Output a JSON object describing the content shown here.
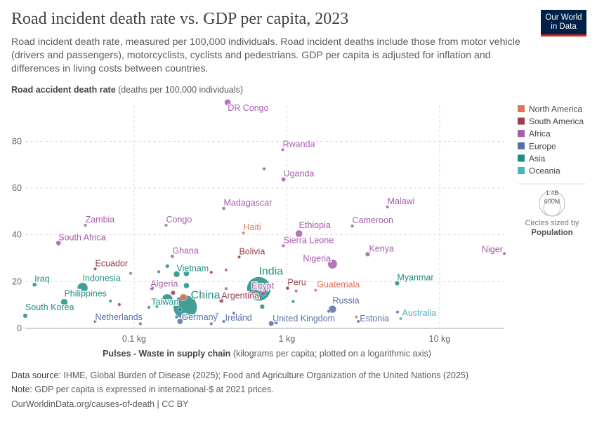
{
  "header": {
    "title": "Road incident death rate vs. GDP per capita, 2023",
    "subtitle": "Road incident death rate, measured per 100,000 individuals. Road incident deaths include those from motor vehicle (drivers and passengers), motorcyclists, cyclists and pedestrians. GDP per capita is adjusted for inflation and differences in living costs between countries.",
    "logo": "Our World in Data"
  },
  "footer": {
    "source_label": "Data source:",
    "source": "IHME, Global Burden of Disease (2025); Food and Agriculture Organization of the United Nations (2025)",
    "note_label": "Note:",
    "note": "GDP per capita is expressed in international-$ at 2021 prices.",
    "url": "OurWorldinData.org/causes-of-death | CC BY"
  },
  "chart_data": {
    "type": "scatter",
    "title": "Road incident death rate vs. GDP per capita, 2023",
    "ylabel_bold": "Road accident death rate",
    "ylabel_unit": "(deaths per 100,000 individuals)",
    "xlabel_bold": "Pulses - Waste in supply chain",
    "xlabel_unit": "(kilograms per capita; plotted on a logarithmic axis)",
    "x_scale": "log",
    "xlim": [
      0.0194,
      26.5
    ],
    "ylim": [
      0,
      96
    ],
    "x_ticks": [
      {
        "value": 0.1,
        "label": "0.1 kg"
      },
      {
        "value": 1,
        "label": "1 kg"
      },
      {
        "value": 10,
        "label": "10 kg"
      }
    ],
    "y_ticks": [
      {
        "value": 0,
        "label": "0"
      },
      {
        "value": 20,
        "label": "20"
      },
      {
        "value": 40,
        "label": "40"
      },
      {
        "value": 60,
        "label": "60"
      },
      {
        "value": 80,
        "label": "80"
      }
    ],
    "grid": true,
    "legend_position": "right",
    "legend": [
      {
        "name": "North America",
        "color": "#e0735e"
      },
      {
        "name": "South America",
        "color": "#9a3f4b"
      },
      {
        "name": "Africa",
        "color": "#a65cad"
      },
      {
        "name": "Europe",
        "color": "#5a6fa3"
      },
      {
        "name": "Asia",
        "color": "#1f8f83"
      },
      {
        "name": "Oceania",
        "color": "#4ab3c4"
      }
    ],
    "size_legend": {
      "title": "Circles sized by",
      "variable": "Population",
      "values": [
        "1.4B",
        "600M"
      ]
    },
    "points": [
      {
        "label": "DR Congo",
        "x": 0.41,
        "y": 96.6,
        "region": "Africa",
        "pop": 105
      },
      {
        "label": "Rwanda",
        "x": 0.94,
        "y": 76.4,
        "region": "Africa",
        "pop": 14
      },
      {
        "label": "Uganda",
        "x": 0.95,
        "y": 63.7,
        "region": "Africa",
        "pop": 48
      },
      {
        "label": "",
        "x": 0.71,
        "y": 68.2,
        "region": "Africa",
        "pop": 30
      },
      {
        "label": "Madagascar",
        "x": 0.386,
        "y": 51.3,
        "region": "Africa",
        "pop": 30
      },
      {
        "label": "Zambia",
        "x": 0.048,
        "y": 44.1,
        "region": "Africa",
        "pop": 20
      },
      {
        "label": "Congo",
        "x": 0.162,
        "y": 44.1,
        "region": "Africa",
        "pop": 6
      },
      {
        "label": "South Africa",
        "x": 0.032,
        "y": 36.5,
        "region": "Africa",
        "pop": 62
      },
      {
        "label": "Haiti",
        "x": 0.52,
        "y": 40.8,
        "region": "North America",
        "pop": 11
      },
      {
        "label": "Sierra Leone",
        "x": 0.95,
        "y": 35.3,
        "region": "Africa",
        "pop": 8
      },
      {
        "label": "Ethiopia",
        "x": 1.2,
        "y": 40.5,
        "region": "Africa",
        "pop": 127
      },
      {
        "label": "Cameroon",
        "x": 2.68,
        "y": 43.8,
        "region": "Africa",
        "pop": 28
      },
      {
        "label": "Malawi",
        "x": 4.55,
        "y": 51.9,
        "region": "Africa",
        "pop": 20
      },
      {
        "label": "Kenya",
        "x": 3.38,
        "y": 31.7,
        "region": "Africa",
        "pop": 55
      },
      {
        "label": "Nigeria",
        "x": 1.99,
        "y": 27.5,
        "region": "Africa",
        "pop": 224
      },
      {
        "label": "Niger",
        "x": 26.5,
        "y": 32.0,
        "region": "Africa",
        "pop": 26
      },
      {
        "label": "Ghana",
        "x": 0.178,
        "y": 30.8,
        "region": "Africa",
        "pop": 34
      },
      {
        "label": "Bolivia",
        "x": 0.487,
        "y": 30.5,
        "region": "South America",
        "pop": 12
      },
      {
        "label": "Ecuador",
        "x": 0.0556,
        "y": 25.4,
        "region": "South America",
        "pop": 18
      },
      {
        "label": "Iraq",
        "x": 0.0223,
        "y": 18.7,
        "region": "Asia",
        "pop": 45
      },
      {
        "label": "Indonesia",
        "x": 0.046,
        "y": 17.3,
        "region": "Asia",
        "pop": 278
      },
      {
        "label": "Philippines",
        "x": 0.0349,
        "y": 11.2,
        "region": "Asia",
        "pop": 117
      },
      {
        "label": "South Korea",
        "x": 0.0194,
        "y": 5.4,
        "region": "Asia",
        "pop": 52
      },
      {
        "label": "Vietnam",
        "x": 0.19,
        "y": 23.2,
        "region": "Asia",
        "pop": 99
      },
      {
        "label": "Algeria",
        "x": 0.131,
        "y": 17.2,
        "region": "Africa",
        "pop": 46
      },
      {
        "label": "Taiwan",
        "x": 0.141,
        "y": 9.4,
        "region": "Asia",
        "pop": 24
      },
      {
        "label": "China",
        "x": 0.216,
        "y": 9.1,
        "region": "Asia",
        "pop": 1410
      },
      {
        "label": "India",
        "x": 0.655,
        "y": 16.9,
        "region": "Asia",
        "pop": 1430
      },
      {
        "label": "Egypt",
        "x": 0.6,
        "y": 14.5,
        "region": "Africa",
        "pop": 113
      },
      {
        "label": "Argentina",
        "x": 0.373,
        "y": 11.8,
        "region": "South America",
        "pop": 46
      },
      {
        "label": "Peru",
        "x": 1.01,
        "y": 17.2,
        "region": "South America",
        "pop": 34
      },
      {
        "label": "Guatemala",
        "x": 1.54,
        "y": 16.3,
        "region": "North America",
        "pop": 18
      },
      {
        "label": "Myanmar",
        "x": 5.27,
        "y": 19.3,
        "region": "Asia",
        "pop": 54
      },
      {
        "label": "Russia",
        "x": 1.99,
        "y": 8.2,
        "region": "Europe",
        "pop": 144
      },
      {
        "label": "Netherlands",
        "x": 0.0556,
        "y": 3.0,
        "region": "Europe",
        "pop": 18
      },
      {
        "label": "Germany",
        "x": 0.2,
        "y": 3.0,
        "region": "Europe",
        "pop": 84
      },
      {
        "label": "Ireland",
        "x": 0.386,
        "y": 3.0,
        "region": "Europe",
        "pop": 5
      },
      {
        "label": "United Kingdom",
        "x": 0.79,
        "y": 2.1,
        "region": "Europe",
        "pop": 68
      },
      {
        "label": "Estonia",
        "x": 2.94,
        "y": 3.0,
        "region": "Europe",
        "pop": 1.3
      },
      {
        "label": "Australia",
        "x": 5.56,
        "y": 4.2,
        "region": "Oceania",
        "pop": 26
      },
      {
        "label": "",
        "x": 0.21,
        "y": 13.3,
        "region": "North America",
        "pop": 128
      },
      {
        "label": "",
        "x": 0.28,
        "y": 13.6,
        "region": "North America",
        "pop": 40
      },
      {
        "label": "",
        "x": 0.165,
        "y": 12.4,
        "region": "Asia",
        "pop": 300
      },
      {
        "label": "",
        "x": 0.18,
        "y": 15.2,
        "region": "South America",
        "pop": 50
      },
      {
        "label": "",
        "x": 0.22,
        "y": 18.3,
        "region": "Asia",
        "pop": 80
      },
      {
        "label": "",
        "x": 0.22,
        "y": 23.5,
        "region": "Asia",
        "pop": 85
      },
      {
        "label": "",
        "x": 0.165,
        "y": 26.6,
        "region": "Asia",
        "pop": 40
      },
      {
        "label": "",
        "x": 0.145,
        "y": 24.2,
        "region": "Asia",
        "pop": 20
      },
      {
        "label": "",
        "x": 0.69,
        "y": 9.3,
        "region": "Asia",
        "pop": 55
      },
      {
        "label": "",
        "x": 0.7,
        "y": 14.8,
        "region": "Africa",
        "pop": 60
      },
      {
        "label": "",
        "x": 0.095,
        "y": 23.5,
        "region": "Africa",
        "pop": 25
      },
      {
        "label": "",
        "x": 0.125,
        "y": 9.0,
        "region": "Asia",
        "pop": 10
      },
      {
        "label": "",
        "x": 0.19,
        "y": 4.9,
        "region": "Europe",
        "pop": 30
      },
      {
        "label": "",
        "x": 0.85,
        "y": 2.5,
        "region": "Europe",
        "pop": 40
      },
      {
        "label": "",
        "x": 0.2,
        "y": 8.0,
        "region": "Europe",
        "pop": 40
      },
      {
        "label": "",
        "x": 0.4,
        "y": 25.0,
        "region": "Africa",
        "pop": 15
      },
      {
        "label": "",
        "x": 0.4,
        "y": 17.0,
        "region": "Africa",
        "pop": 5
      },
      {
        "label": "",
        "x": 0.32,
        "y": 24.0,
        "region": "South America",
        "pop": 5
      },
      {
        "label": "",
        "x": 0.35,
        "y": 6.0,
        "region": "Europe",
        "pop": 5
      },
      {
        "label": "",
        "x": 0.45,
        "y": 6.5,
        "region": "Europe",
        "pop": 10
      },
      {
        "label": "",
        "x": 0.5,
        "y": 5.5,
        "region": "Europe",
        "pop": 8
      },
      {
        "label": "",
        "x": 0.07,
        "y": 11.7,
        "region": "Asia",
        "pop": 5
      },
      {
        "label": "",
        "x": 0.08,
        "y": 10.2,
        "region": "South America",
        "pop": 5
      },
      {
        "label": "",
        "x": 0.11,
        "y": 2.0,
        "region": "Europe",
        "pop": 5
      },
      {
        "label": "",
        "x": 0.32,
        "y": 2.0,
        "region": "Europe",
        "pop": 5
      },
      {
        "label": "",
        "x": 1.15,
        "y": 16.0,
        "region": "Africa",
        "pop": 5
      },
      {
        "label": "",
        "x": 1.1,
        "y": 11.5,
        "region": "Asia",
        "pop": 5
      },
      {
        "label": "",
        "x": 1.88,
        "y": 7.3,
        "region": "Europe",
        "pop": 5
      },
      {
        "label": "",
        "x": 2.85,
        "y": 4.9,
        "region": "North America",
        "pop": 8
      },
      {
        "label": "",
        "x": 5.3,
        "y": 7.0,
        "region": "Europe",
        "pop": 3
      }
    ]
  }
}
